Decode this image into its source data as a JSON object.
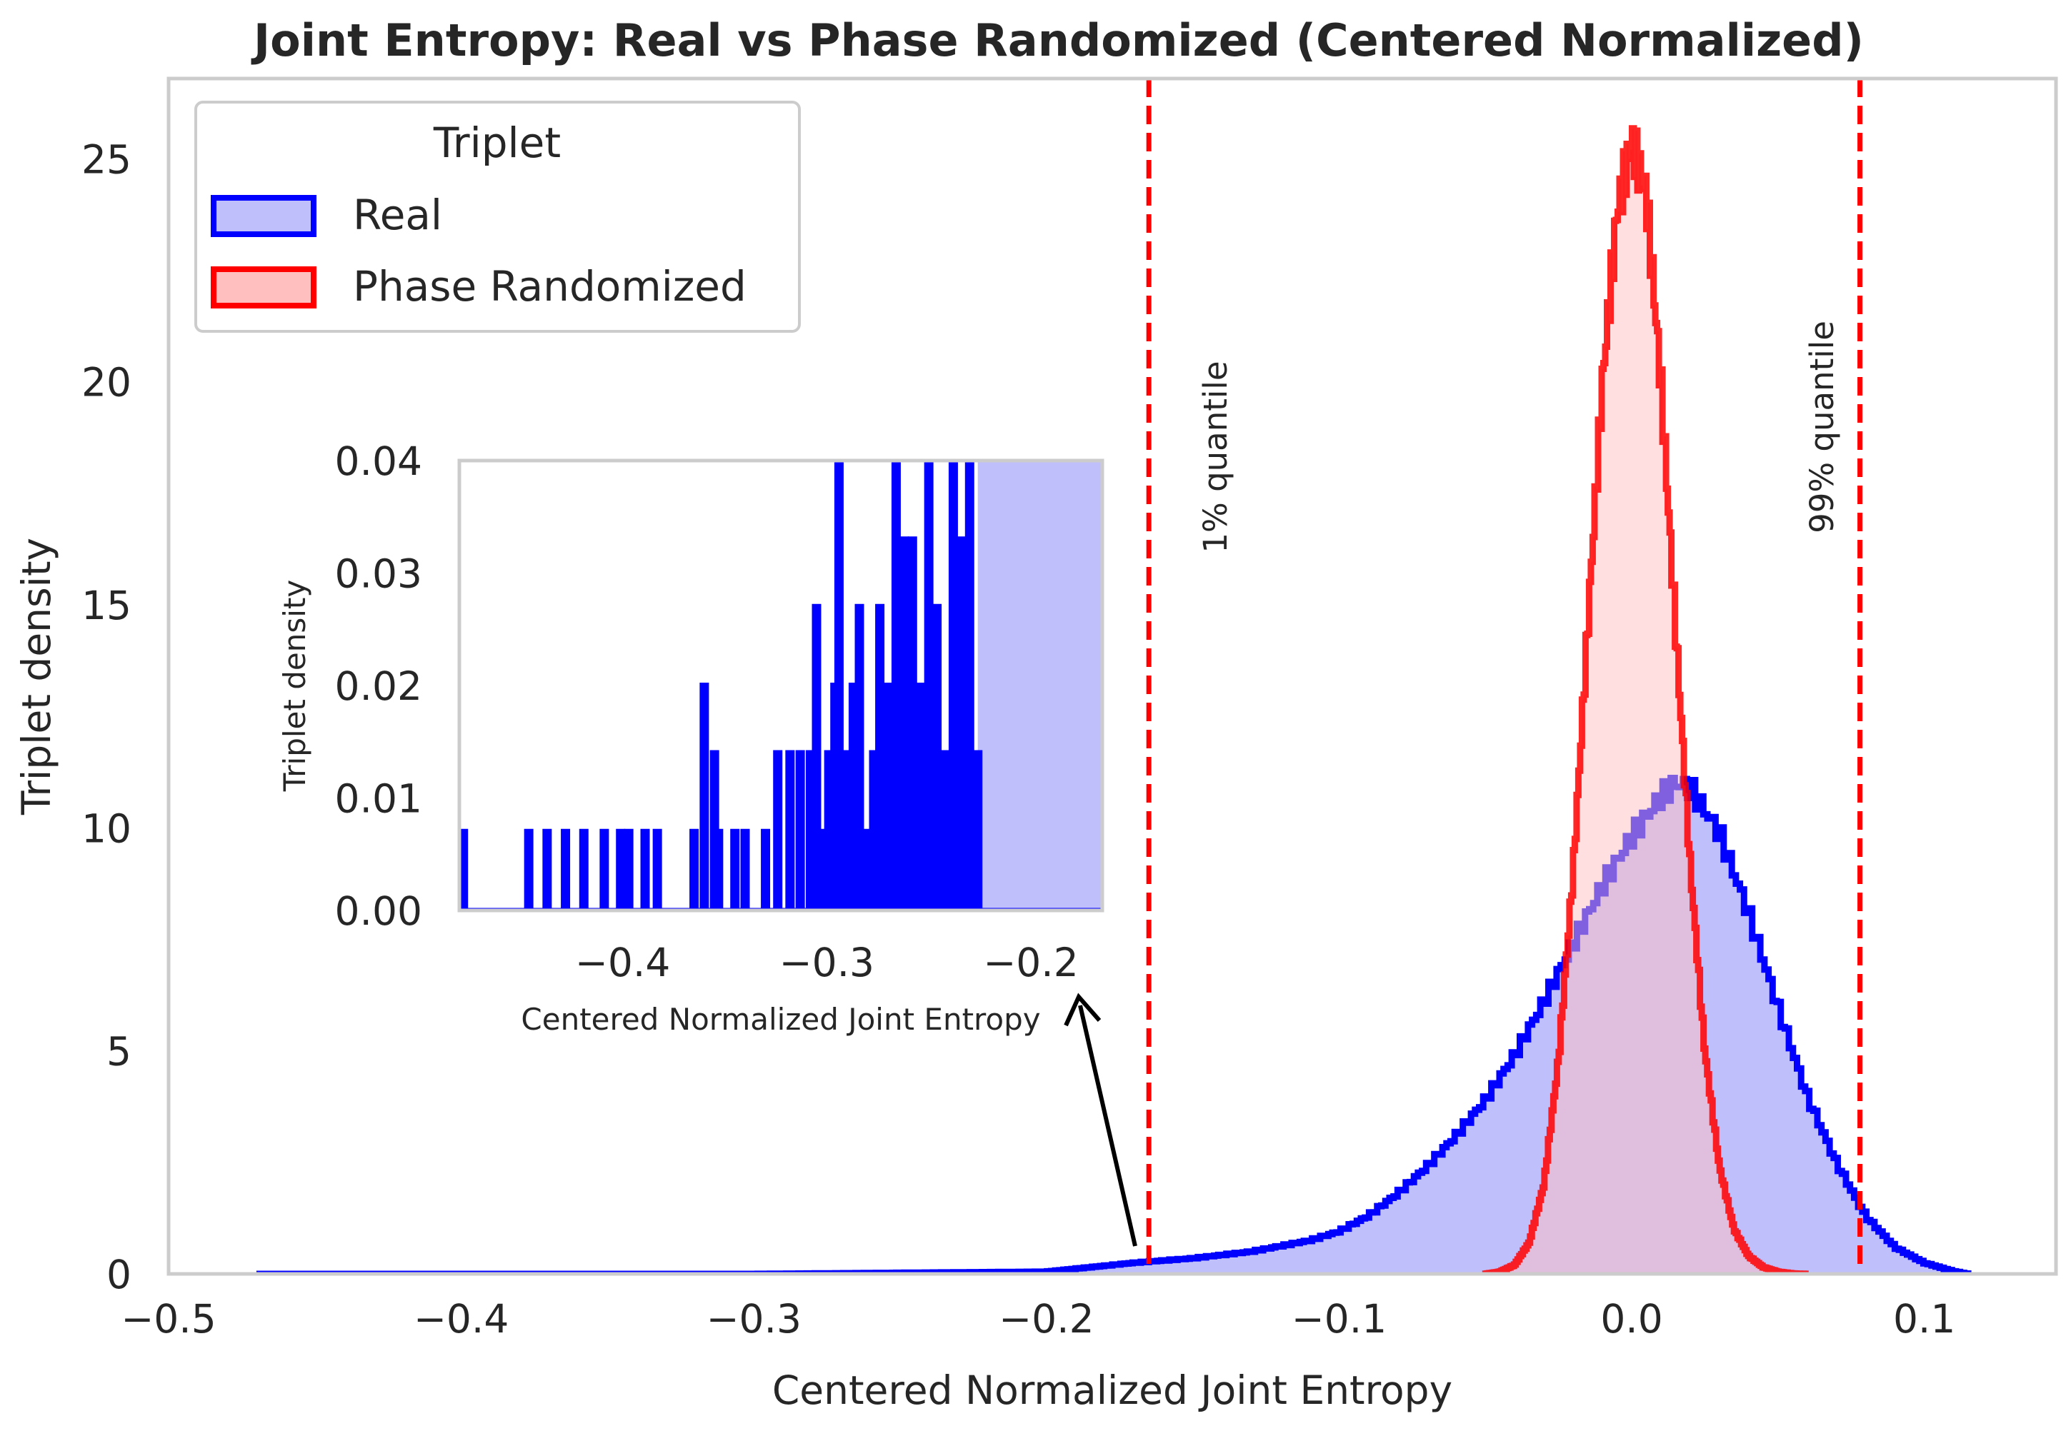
{
  "chart_data": [
    {
      "type": "area",
      "title": "Joint Entropy: Real vs Phase Randomized (Centered Normalized)",
      "xlabel": "Centered Normalized Joint Entropy",
      "ylabel": "Triplet density",
      "xlim": [
        -0.5,
        0.145
      ],
      "ylim": [
        0,
        26.8
      ],
      "xticks": [
        -0.5,
        -0.4,
        -0.3,
        -0.2,
        -0.1,
        0.0,
        0.1
      ],
      "xtick_labels": [
        "−0.5",
        "−0.4",
        "−0.3",
        "−0.2",
        "−0.1",
        "0.0",
        "0.1"
      ],
      "yticks": [
        0,
        5,
        10,
        15,
        20,
        25
      ],
      "ytick_labels": [
        "0",
        "5",
        "10",
        "15",
        "20",
        "25"
      ],
      "grid": false,
      "legend": {
        "title": "Triplet",
        "position": "top-left",
        "entries": [
          {
            "label": "Real",
            "color": "#0000ff",
            "fill": "#bfbffb"
          },
          {
            "label": "Phase Randomized",
            "color": "#ff0000",
            "fill": "#ffbfbf"
          }
        ]
      },
      "series": [
        {
          "name": "Real",
          "color": "#0000ff",
          "fill": "#bfbffb",
          "x": [
            -0.47,
            -0.3,
            -0.2,
            -0.17,
            -0.15,
            -0.13,
            -0.11,
            -0.1,
            -0.09,
            -0.08,
            -0.07,
            -0.06,
            -0.05,
            -0.04,
            -0.03,
            -0.02,
            -0.01,
            0.0,
            0.01,
            0.015,
            0.02,
            0.03,
            0.04,
            0.05,
            0.06,
            0.07,
            0.08,
            0.09,
            0.1,
            0.11,
            0.115
          ],
          "y": [
            0.0,
            0.0,
            0.05,
            0.25,
            0.35,
            0.5,
            0.75,
            0.95,
            1.3,
            1.8,
            2.4,
            3.1,
            3.9,
            4.9,
            6.1,
            7.4,
            8.7,
            9.8,
            10.7,
            11.0,
            10.9,
            9.9,
            8.1,
            6.0,
            4.0,
            2.5,
            1.3,
            0.6,
            0.25,
            0.06,
            0.0
          ]
        },
        {
          "name": "Phase Randomized",
          "color": "#ff0000",
          "fill": "#ffbfbf",
          "x": [
            -0.05,
            -0.045,
            -0.04,
            -0.035,
            -0.03,
            -0.025,
            -0.02,
            -0.015,
            -0.01,
            -0.005,
            0.0,
            0.005,
            0.01,
            0.015,
            0.02,
            0.025,
            0.03,
            0.035,
            0.04,
            0.045,
            0.05,
            0.055,
            0.06
          ],
          "y": [
            0.0,
            0.05,
            0.2,
            0.7,
            2.0,
            4.8,
            9.0,
            14.5,
            20.0,
            23.8,
            25.4,
            24.2,
            20.0,
            14.5,
            9.2,
            5.0,
            2.4,
            1.0,
            0.4,
            0.15,
            0.05,
            0.01,
            0.0
          ]
        }
      ],
      "reference_lines": [
        {
          "x": -0.165,
          "label": "1% quantile",
          "color": "#ff0000",
          "style": "dashed"
        },
        {
          "x": 0.078,
          "label": "99% quantile",
          "color": "#ff0000",
          "style": "dashed"
        }
      ]
    },
    {
      "type": "area",
      "title": "",
      "xlabel": "Centered Normalized Joint Entropy",
      "ylabel": "Triplet density",
      "xlim": [
        -0.48,
        -0.165
      ],
      "ylim": [
        0,
        0.04
      ],
      "xticks": [
        -0.4,
        -0.3,
        -0.2
      ],
      "xtick_labels": [
        "−0.4",
        "−0.3",
        "−0.2"
      ],
      "yticks": [
        0.0,
        0.01,
        0.02,
        0.03,
        0.04
      ],
      "ytick_labels": [
        "0.00",
        "0.01",
        "0.02",
        "0.03",
        "0.04"
      ],
      "series": [
        {
          "name": "Real",
          "color": "#0000ff",
          "fill": "#bfbffb",
          "bars": [
            {
              "x": -0.478,
              "y": 0.007
            },
            {
              "x": -0.446,
              "y": 0.007
            },
            {
              "x": -0.437,
              "y": 0.007
            },
            {
              "x": -0.428,
              "y": 0.007
            },
            {
              "x": -0.419,
              "y": 0.007
            },
            {
              "x": -0.409,
              "y": 0.007
            },
            {
              "x": -0.401,
              "y": 0.007
            },
            {
              "x": -0.397,
              "y": 0.007
            },
            {
              "x": -0.389,
              "y": 0.007
            },
            {
              "x": -0.383,
              "y": 0.007
            },
            {
              "x": -0.365,
              "y": 0.007
            },
            {
              "x": -0.36,
              "y": 0.02
            },
            {
              "x": -0.355,
              "y": 0.014
            },
            {
              "x": -0.353,
              "y": 0.007
            },
            {
              "x": -0.345,
              "y": 0.007
            },
            {
              "x": -0.34,
              "y": 0.007
            },
            {
              "x": -0.33,
              "y": 0.007
            },
            {
              "x": -0.324,
              "y": 0.014
            },
            {
              "x": -0.318,
              "y": 0.014
            },
            {
              "x": -0.313,
              "y": 0.014
            },
            {
              "x": -0.308,
              "y": 0.014
            },
            {
              "x": -0.305,
              "y": 0.027
            },
            {
              "x": -0.302,
              "y": 0.007
            },
            {
              "x": -0.299,
              "y": 0.014
            },
            {
              "x": -0.296,
              "y": 0.02
            },
            {
              "x": -0.294,
              "y": 0.04
            },
            {
              "x": -0.29,
              "y": 0.014
            },
            {
              "x": -0.287,
              "y": 0.02
            },
            {
              "x": -0.284,
              "y": 0.027
            },
            {
              "x": -0.281,
              "y": 0.007
            },
            {
              "x": -0.277,
              "y": 0.014
            },
            {
              "x": -0.274,
              "y": 0.027
            },
            {
              "x": -0.27,
              "y": 0.02
            },
            {
              "x": -0.266,
              "y": 0.04
            },
            {
              "x": -0.262,
              "y": 0.033
            },
            {
              "x": -0.258,
              "y": 0.033
            },
            {
              "x": -0.254,
              "y": 0.02
            },
            {
              "x": -0.25,
              "y": 0.04
            },
            {
              "x": -0.246,
              "y": 0.027
            },
            {
              "x": -0.242,
              "y": 0.014
            },
            {
              "x": -0.238,
              "y": 0.04
            },
            {
              "x": -0.234,
              "y": 0.033
            },
            {
              "x": -0.23,
              "y": 0.04
            },
            {
              "x": -0.226,
              "y": 0.014
            }
          ],
          "full_after_x": -0.226
        }
      ]
    }
  ]
}
